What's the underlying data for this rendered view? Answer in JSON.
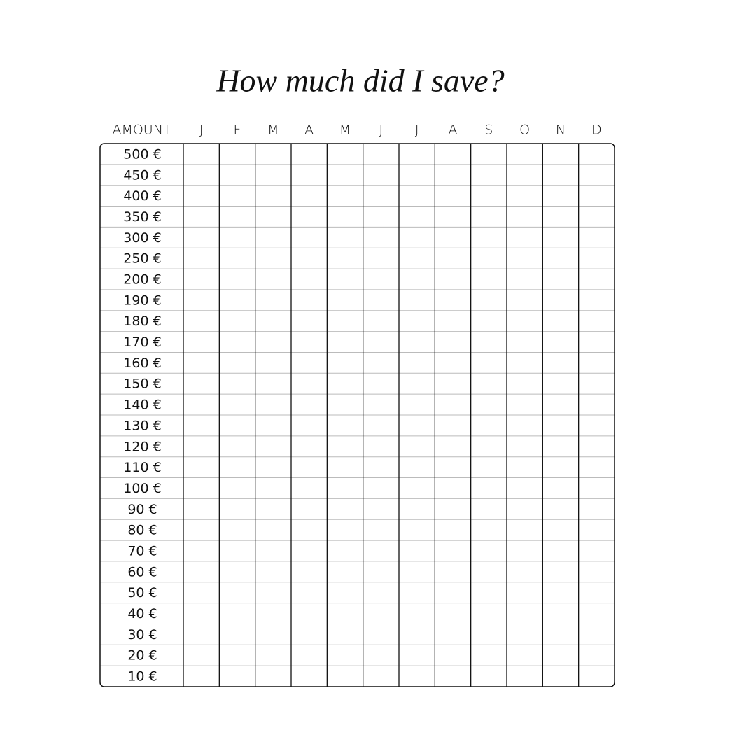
{
  "title": "How much did I save?",
  "table": {
    "header": [
      "AMOUNT",
      "J",
      "F",
      "M",
      "A",
      "M",
      "J",
      "J",
      "A",
      "S",
      "O",
      "N",
      "D"
    ],
    "rows": [
      "500 €",
      "450 €",
      "400 €",
      "350 €",
      "300 €",
      "250 €",
      "200 €",
      "190 €",
      "180 €",
      "170 €",
      "160 €",
      "150 €",
      "140 €",
      "130 €",
      "120 €",
      "110 €",
      "100 €",
      "90 €",
      "80 €",
      "70 €",
      "60 €",
      "50 €",
      "40 €",
      "30 €",
      "20 €",
      "10 €"
    ]
  }
}
